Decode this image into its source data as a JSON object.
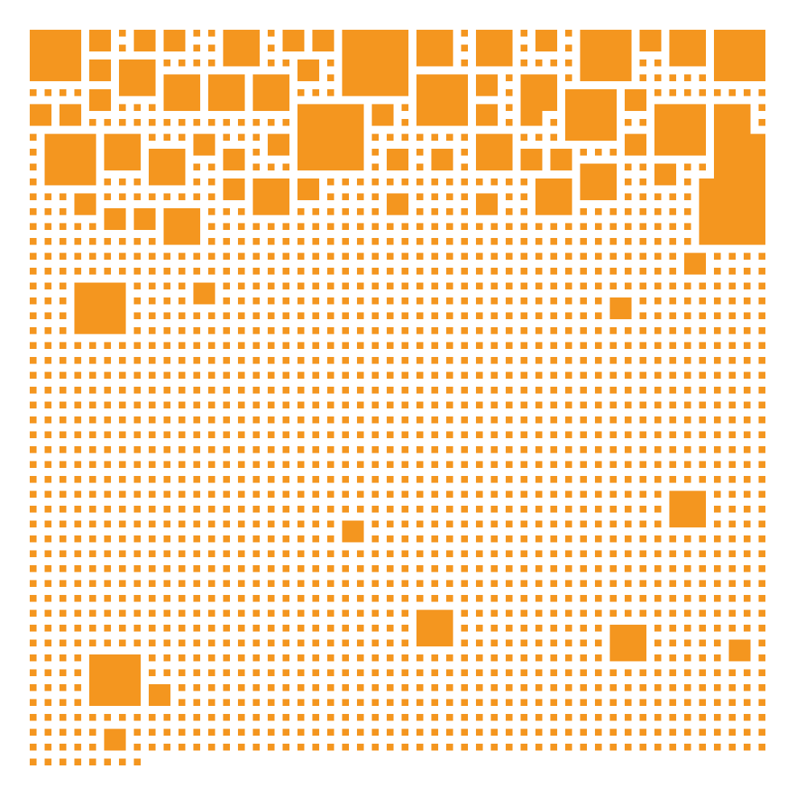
{
  "artwork": {
    "kind": "square-tile pattern",
    "icon": "square-grid-icon",
    "colors": {
      "tile": "#F4961F",
      "background": "#FFFFFF"
    }
  }
}
